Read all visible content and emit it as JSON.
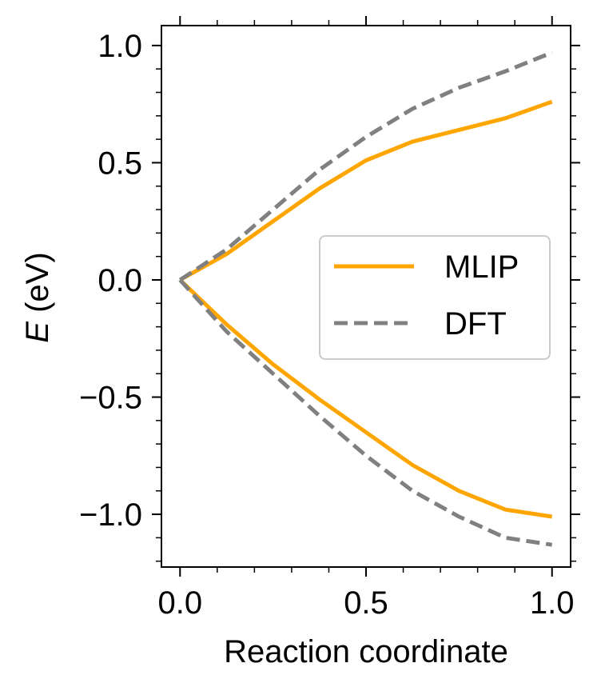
{
  "chart_data": {
    "type": "line",
    "title": "",
    "xlabel": "Reaction coordinate",
    "ylabel_italic": "E",
    "ylabel_rest": " (eV)",
    "xlim": [
      -0.05,
      1.05
    ],
    "ylim": [
      -1.225,
      1.085
    ],
    "xticks": [
      0.0,
      0.5,
      1.0
    ],
    "xtick_labels": [
      "0.0",
      "0.5",
      "1.0"
    ],
    "yticks": [
      -1.0,
      -0.5,
      0.0,
      0.5,
      1.0
    ],
    "ytick_labels": [
      "−1.0",
      "−0.5",
      "0.0",
      "0.5",
      "1.0"
    ],
    "x_minor_step": 0.1,
    "y_minor_step": 0.1,
    "grid": false,
    "legend_position": "center-right",
    "x": [
      0,
      0.125,
      0.25,
      0.375,
      0.5,
      0.625,
      0.75,
      0.875,
      1.0
    ],
    "series": [
      {
        "name": "MLIP",
        "branch": "upper",
        "style": "solid",
        "color": "#ffa500",
        "values": [
          0.0,
          0.11,
          0.25,
          0.39,
          0.51,
          0.59,
          0.64,
          0.69,
          0.76
        ]
      },
      {
        "name": "DFT",
        "branch": "upper",
        "style": "dashed",
        "color": "#808080",
        "values": [
          0.0,
          0.13,
          0.3,
          0.47,
          0.61,
          0.73,
          0.82,
          0.89,
          0.97
        ]
      },
      {
        "name": "MLIP",
        "branch": "lower",
        "style": "solid",
        "color": "#ffa500",
        "values": [
          0.0,
          -0.19,
          -0.36,
          -0.51,
          -0.65,
          -0.79,
          -0.9,
          -0.98,
          -1.01
        ]
      },
      {
        "name": "DFT",
        "branch": "lower",
        "style": "dashed",
        "color": "#808080",
        "values": [
          0.0,
          -0.22,
          -0.4,
          -0.58,
          -0.75,
          -0.9,
          -1.01,
          -1.1,
          -1.13
        ]
      }
    ],
    "legend": [
      {
        "label": "MLIP",
        "style": "solid",
        "color": "#ffa500"
      },
      {
        "label": "DFT",
        "style": "dashed",
        "color": "#808080"
      }
    ]
  }
}
